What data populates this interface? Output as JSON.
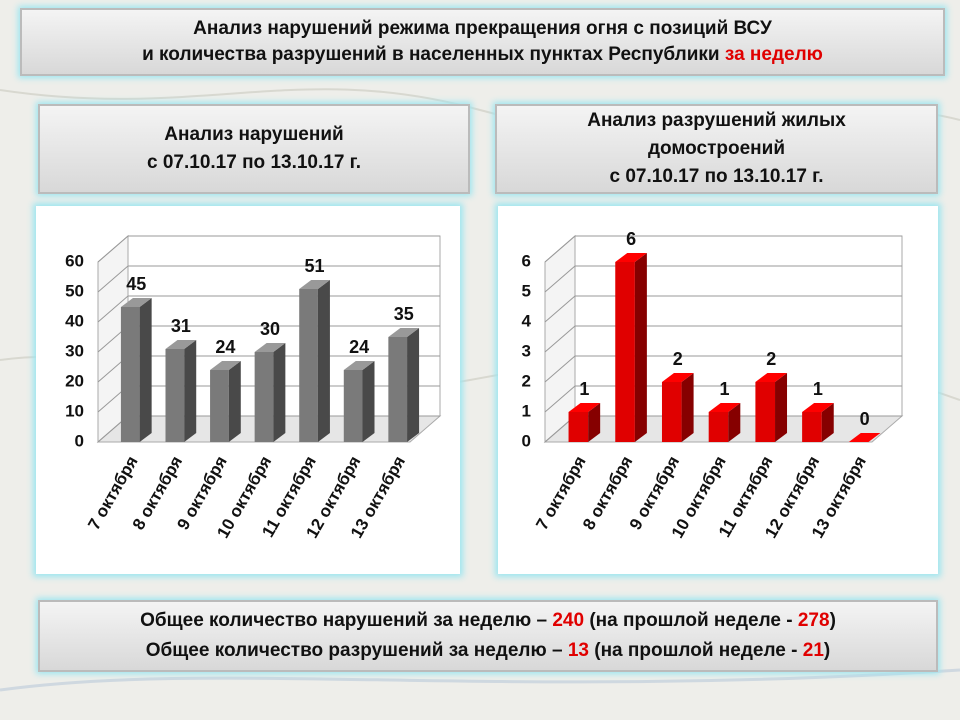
{
  "header": {
    "line1": "Анализ нарушений режима прекращения огня с позиций ВСУ",
    "line2": "и количества разрушений в населенных пунктах Республики",
    "line2_highlight": "за неделю"
  },
  "chart_data": [
    {
      "type": "bar3d",
      "title": "Анализ нарушений",
      "subtitle": "с 07.10.17 по 13.10.17 г.",
      "categories": [
        "7 октября",
        "8 октября",
        "9 октября",
        "10 октября",
        "11 октября",
        "12 октября",
        "13 октября"
      ],
      "values": [
        45,
        31,
        24,
        30,
        51,
        24,
        35
      ],
      "color": "#7a7a7a",
      "ylim": [
        0,
        60
      ],
      "yticks": [
        0,
        10,
        20,
        30,
        40,
        50,
        60
      ],
      "grid": true
    },
    {
      "type": "bar3d",
      "title": "Анализ разрушений жилых домостроений",
      "subtitle": "с 07.10.17 по 13.10.17 г.",
      "categories": [
        "7 октября",
        "8 октября",
        "9 октября",
        "10 октября",
        "11 октября",
        "12 октября",
        "13 октября"
      ],
      "values": [
        1,
        6,
        2,
        1,
        2,
        1,
        0
      ],
      "color": "#e00000",
      "ylim": [
        0,
        6
      ],
      "yticks": [
        0,
        1,
        2,
        3,
        4,
        5,
        6
      ],
      "grid": true
    }
  ],
  "summary": [
    {
      "text": "Общее количество нарушений за неделю –",
      "value": 240,
      "previous_text": "(на прошлой неделе -",
      "previous": 278,
      "close": ")"
    },
    {
      "text": "Общее количество разрушений за неделю –",
      "value": 13,
      "previous_text": "(на прошлой неделе -",
      "previous": 21,
      "close": ")"
    }
  ]
}
